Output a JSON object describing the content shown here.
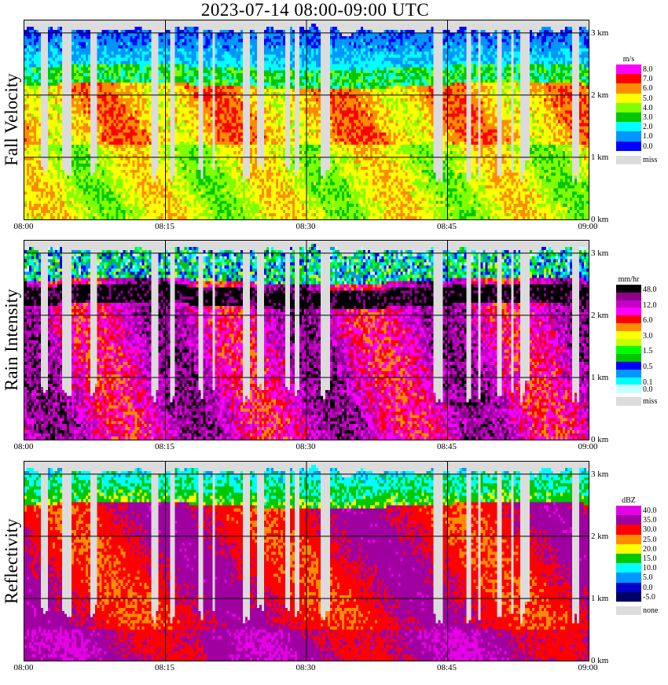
{
  "title": "2023-07-14   08:00-09:00 UTC",
  "time_ticks": [
    "08:00",
    "08:15",
    "08:30",
    "08:45",
    "09:00"
  ],
  "alt_ticks": [
    "3 km",
    "2 km",
    "1 km",
    "0 km"
  ],
  "chart_data": [
    {
      "type": "heatmap",
      "title": "Fall Velocity",
      "ylabel": "Fall Velocity",
      "x_ticks": [
        "08:00",
        "08:15",
        "08:30",
        "08:45",
        "09:00"
      ],
      "y_ticks": [
        "0 km",
        "1 km",
        "2 km",
        "3 km"
      ],
      "legend_unit": "m/s",
      "legend": [
        {
          "label": "8.0",
          "color": "#ff00ff"
        },
        {
          "label": "7.0",
          "color": "#ff0000"
        },
        {
          "label": "6.0",
          "color": "#ff8c00"
        },
        {
          "label": "5.0",
          "color": "#ffff00"
        },
        {
          "label": "4.0",
          "color": "#80ff00"
        },
        {
          "label": "3.0",
          "color": "#00c800"
        },
        {
          "label": "2.0",
          "color": "#00ffff"
        },
        {
          "label": "1.0",
          "color": "#0096ff"
        },
        {
          "label": "0.0",
          "color": "#0000ff"
        },
        {
          "label": "miss",
          "color": "#dcdcdc"
        }
      ]
    },
    {
      "type": "heatmap",
      "title": "Rain Intensity",
      "ylabel": "Rain Intensity",
      "x_ticks": [
        "08:00",
        "08:15",
        "08:30",
        "08:45",
        "09:00"
      ],
      "y_ticks": [
        "0 km",
        "1 km",
        "2 km",
        "3 km"
      ],
      "legend_unit": "mm/hr",
      "legend": [
        {
          "label": "48.0",
          "color": "#000000"
        },
        {
          "label": "",
          "color": "#8c008c"
        },
        {
          "label": "12.0",
          "color": "#c800c8"
        },
        {
          "label": "",
          "color": "#ff00ff"
        },
        {
          "label": "6.0",
          "color": "#ff0000"
        },
        {
          "label": "",
          "color": "#ff8c00"
        },
        {
          "label": "3.0",
          "color": "#ffff00"
        },
        {
          "label": "",
          "color": "#c8ff00"
        },
        {
          "label": "1.5",
          "color": "#00ff00"
        },
        {
          "label": "",
          "color": "#00c800"
        },
        {
          "label": "0.5",
          "color": "#0000ff"
        },
        {
          "label": "",
          "color": "#0096ff"
        },
        {
          "label": "0.1",
          "color": "#00ffff"
        },
        {
          "label": "0.0",
          "color": "#c8ffff"
        },
        {
          "label": "miss",
          "color": "#dcdcdc"
        }
      ]
    },
    {
      "type": "heatmap",
      "title": "Reflectivity",
      "ylabel": "Reflectivity",
      "x_ticks": [
        "08:00",
        "08:15",
        "08:30",
        "08:45",
        "09:00"
      ],
      "y_ticks": [
        "0 km",
        "1 km",
        "2 km",
        "3 km"
      ],
      "legend_unit": "dBZ",
      "legend": [
        {
          "label": "40.0",
          "color": "#e600e6"
        },
        {
          "label": "35.0",
          "color": "#a000a0"
        },
        {
          "label": "30.0",
          "color": "#ff0000"
        },
        {
          "label": "25.0",
          "color": "#ff8c00"
        },
        {
          "label": "20.0",
          "color": "#ffff00"
        },
        {
          "label": "15.0",
          "color": "#00c800"
        },
        {
          "label": "10.0",
          "color": "#00ffff"
        },
        {
          "label": "5.0",
          "color": "#0096ff"
        },
        {
          "label": "0.0",
          "color": "#0000c8"
        },
        {
          "label": "-5.0",
          "color": "#000064"
        },
        {
          "label": "none",
          "color": "#dcdcdc"
        }
      ]
    }
  ]
}
